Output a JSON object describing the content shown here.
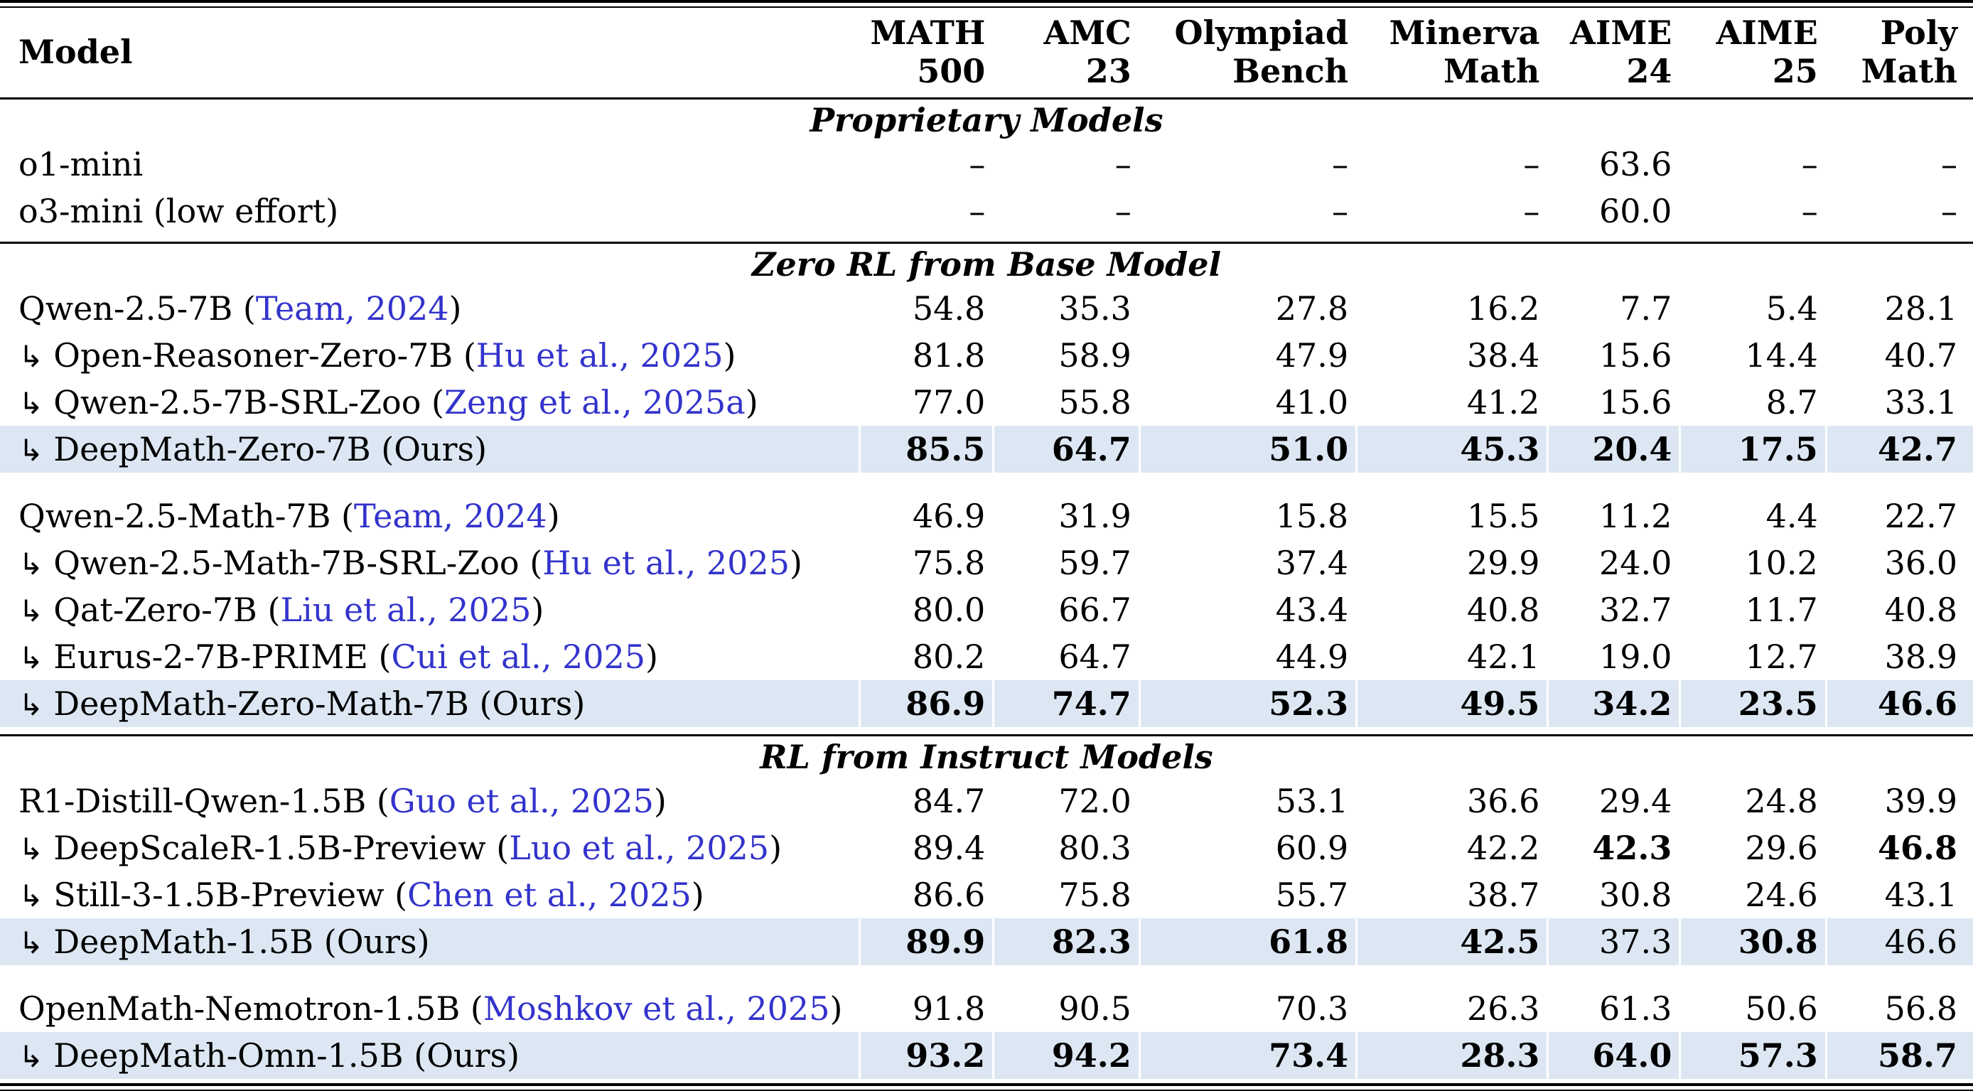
{
  "colors": {
    "highlight_row_bg": "#dce7f3",
    "citation_blue": "#3333cc",
    "text": "#000000"
  },
  "header": {
    "model_label": "Model",
    "metric_labels": [
      "MATH\n500",
      "AMC\n23",
      "Olympiad\nBench",
      "Minerva\nMath",
      "AIME\n24",
      "AIME\n25",
      "Poly\nMath"
    ]
  },
  "sections": [
    {
      "title": "Proprietary Models",
      "groups": [
        {
          "rows": [
            {
              "model": "o1-mini",
              "arrow": false,
              "citation": null,
              "suffix": null,
              "highlight": false,
              "values": [
                "–",
                "–",
                "–",
                "–",
                "63.6",
                "–",
                "–"
              ],
              "bold_values": [
                false,
                false,
                false,
                false,
                false,
                false,
                false
              ]
            },
            {
              "model": "o3-mini (low effort)",
              "arrow": false,
              "citation": null,
              "suffix": null,
              "highlight": false,
              "values": [
                "–",
                "–",
                "–",
                "–",
                "60.0",
                "–",
                "–"
              ],
              "bold_values": [
                false,
                false,
                false,
                false,
                false,
                false,
                false
              ]
            }
          ]
        }
      ]
    },
    {
      "title": "Zero RL from Base Model",
      "groups": [
        {
          "rows": [
            {
              "model": "Qwen-2.5-7B",
              "arrow": false,
              "citation": "Team, 2024",
              "suffix": null,
              "highlight": false,
              "values": [
                "54.8",
                "35.3",
                "27.8",
                "16.2",
                "7.7",
                "5.4",
                "28.1"
              ],
              "bold_values": [
                false,
                false,
                false,
                false,
                false,
                false,
                false
              ]
            },
            {
              "model": "Open-Reasoner-Zero-7B",
              "arrow": true,
              "citation": "Hu et al., 2025",
              "suffix": null,
              "highlight": false,
              "values": [
                "81.8",
                "58.9",
                "47.9",
                "38.4",
                "15.6",
                "14.4",
                "40.7"
              ],
              "bold_values": [
                false,
                false,
                false,
                false,
                false,
                false,
                false
              ]
            },
            {
              "model": "Qwen-2.5-7B-SRL-Zoo",
              "arrow": true,
              "citation": "Zeng et al., 2025a",
              "suffix": null,
              "highlight": false,
              "values": [
                "77.0",
                "55.8",
                "41.0",
                "41.2",
                "15.6",
                "8.7",
                "33.1"
              ],
              "bold_values": [
                false,
                false,
                false,
                false,
                false,
                false,
                false
              ]
            },
            {
              "model": "DeepMath-Zero-7B",
              "arrow": true,
              "citation": null,
              "suffix": "(Ours)",
              "highlight": true,
              "values": [
                "85.5",
                "64.7",
                "51.0",
                "45.3",
                "20.4",
                "17.5",
                "42.7"
              ],
              "bold_values": [
                true,
                true,
                true,
                true,
                true,
                true,
                true
              ]
            }
          ]
        },
        {
          "rows": [
            {
              "model": "Qwen-2.5-Math-7B",
              "arrow": false,
              "citation": "Team, 2024",
              "suffix": null,
              "highlight": false,
              "values": [
                "46.9",
                "31.9",
                "15.8",
                "15.5",
                "11.2",
                "4.4",
                "22.7"
              ],
              "bold_values": [
                false,
                false,
                false,
                false,
                false,
                false,
                false
              ]
            },
            {
              "model": "Qwen-2.5-Math-7B-SRL-Zoo",
              "arrow": true,
              "citation": "Hu et al., 2025",
              "suffix": null,
              "highlight": false,
              "values": [
                "75.8",
                "59.7",
                "37.4",
                "29.9",
                "24.0",
                "10.2",
                "36.0"
              ],
              "bold_values": [
                false,
                false,
                false,
                false,
                false,
                false,
                false
              ]
            },
            {
              "model": "Qat-Zero-7B",
              "arrow": true,
              "citation": "Liu et al., 2025",
              "suffix": null,
              "highlight": false,
              "values": [
                "80.0",
                "66.7",
                "43.4",
                "40.8",
                "32.7",
                "11.7",
                "40.8"
              ],
              "bold_values": [
                false,
                false,
                false,
                false,
                false,
                false,
                false
              ]
            },
            {
              "model": "Eurus-2-7B-PRIME",
              "arrow": true,
              "citation": "Cui et al., 2025",
              "suffix": null,
              "highlight": false,
              "values": [
                "80.2",
                "64.7",
                "44.9",
                "42.1",
                "19.0",
                "12.7",
                "38.9"
              ],
              "bold_values": [
                false,
                false,
                false,
                false,
                false,
                false,
                false
              ]
            },
            {
              "model": "DeepMath-Zero-Math-7B",
              "arrow": true,
              "citation": null,
              "suffix": "(Ours)",
              "highlight": true,
              "values": [
                "86.9",
                "74.7",
                "52.3",
                "49.5",
                "34.2",
                "23.5",
                "46.6"
              ],
              "bold_values": [
                true,
                true,
                true,
                true,
                true,
                true,
                true
              ]
            }
          ]
        }
      ]
    },
    {
      "title": "RL from Instruct Models",
      "groups": [
        {
          "rows": [
            {
              "model": "R1-Distill-Qwen-1.5B",
              "arrow": false,
              "citation": "Guo et al., 2025",
              "suffix": null,
              "highlight": false,
              "values": [
                "84.7",
                "72.0",
                "53.1",
                "36.6",
                "29.4",
                "24.8",
                "39.9"
              ],
              "bold_values": [
                false,
                false,
                false,
                false,
                false,
                false,
                false
              ]
            },
            {
              "model": "DeepScaleR-1.5B-Preview",
              "arrow": true,
              "citation": "Luo et al., 2025",
              "suffix": null,
              "highlight": false,
              "values": [
                "89.4",
                "80.3",
                "60.9",
                "42.2",
                "42.3",
                "29.6",
                "46.8"
              ],
              "bold_values": [
                false,
                false,
                false,
                false,
                true,
                false,
                true
              ]
            },
            {
              "model": "Still-3-1.5B-Preview",
              "arrow": true,
              "citation": "Chen et al., 2025",
              "suffix": null,
              "highlight": false,
              "values": [
                "86.6",
                "75.8",
                "55.7",
                "38.7",
                "30.8",
                "24.6",
                "43.1"
              ],
              "bold_values": [
                false,
                false,
                false,
                false,
                false,
                false,
                false
              ]
            },
            {
              "model": "DeepMath-1.5B",
              "arrow": true,
              "citation": null,
              "suffix": "(Ours)",
              "highlight": true,
              "values": [
                "89.9",
                "82.3",
                "61.8",
                "42.5",
                "37.3",
                "30.8",
                "46.6"
              ],
              "bold_values": [
                true,
                true,
                true,
                true,
                false,
                true,
                false
              ]
            }
          ]
        },
        {
          "rows": [
            {
              "model": "OpenMath-Nemotron-1.5B",
              "arrow": false,
              "citation": "Moshkov et al., 2025",
              "suffix": null,
              "highlight": false,
              "values": [
                "91.8",
                "90.5",
                "70.3",
                "26.3",
                "61.3",
                "50.6",
                "56.8"
              ],
              "bold_values": [
                false,
                false,
                false,
                false,
                false,
                false,
                false
              ]
            },
            {
              "model": "DeepMath-Omn-1.5B",
              "arrow": true,
              "citation": null,
              "suffix": "(Ours)",
              "highlight": true,
              "values": [
                "93.2",
                "94.2",
                "73.4",
                "28.3",
                "64.0",
                "57.3",
                "58.7"
              ],
              "bold_values": [
                true,
                true,
                true,
                true,
                true,
                true,
                true
              ]
            }
          ]
        }
      ]
    }
  ]
}
